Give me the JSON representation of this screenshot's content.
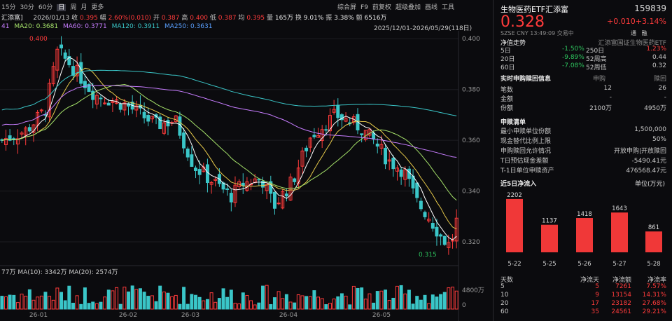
{
  "toolbar": {
    "periods": [
      "15分",
      "30分",
      "60分",
      "日",
      "周",
      "月",
      "更多"
    ],
    "selected": "日",
    "right_items": [
      "综合屏",
      "F9",
      "前复权",
      "超级叠加",
      "画线",
      "工具"
    ]
  },
  "quote_bar": {
    "name": "汇添富]",
    "date": "2026/01/13",
    "close_l": "收",
    "close": "0.395",
    "chg_l": "幅",
    "chg": "2.60%(0.010)",
    "open_l": "开",
    "open": "0.387",
    "high_l": "高",
    "high": "0.400",
    "low_l": "低",
    "low": "0.387",
    "avg_l": "均",
    "avg": "0.395",
    "vol_l": "量",
    "vol": "165万",
    "turn_l": "换",
    "turn": "9.01%",
    "amp_l": "振",
    "amp": "3.38%",
    "amt_l": "额",
    "amt": "6516万"
  },
  "ma_bar": {
    "ma10_tail": "41",
    "ma20": "MA20: 0.3681",
    "ma60": "MA60: 0.3771",
    "ma120": "MA120: 0.3911",
    "ma250": "MA250: 0.3631",
    "range": "2025/12/01-2026/05/29(118日)"
  },
  "chart_data": {
    "type": "candlestick",
    "ylim": [
      0.312,
      0.402
    ],
    "y_ticks": [
      "0.400",
      "0.380",
      "0.360",
      "0.340",
      "0.320"
    ],
    "x_ticks": [
      "26-01",
      "26-02",
      "26-03",
      "26-04",
      "26-05"
    ],
    "high_label": "0.400",
    "low_label": "0.315",
    "vol_ticks": [
      "4800万",
      "0"
    ],
    "vol_ma_text": "77万 MA(10): 3342万 MA(20): 2574万"
  },
  "security": {
    "name": "生物医药ETF汇添富",
    "code": "159839",
    "price": "0.328",
    "change": "+0.010",
    "change_pct": "+3.14%",
    "market": "SZSE",
    "currency": "CNY",
    "time": "13:49:09",
    "status": "交易中",
    "tab1": "通",
    "tab2": "融"
  },
  "nav": {
    "title": "净值走势",
    "fund_name": "汇添富国证生物医药ETF",
    "rows": [
      {
        "p": "5日",
        "v": "-1.50%",
        "p2": "250日",
        "v2": "1.23%"
      },
      {
        "p": "20日",
        "v": "-9.89%",
        "p2": "52周高",
        "v2": "0.44"
      },
      {
        "p": "60日",
        "v": "-7.08%",
        "p2": "52周低",
        "v2": "0.32"
      }
    ]
  },
  "redemption_info": {
    "title": "实时申购赎回信息",
    "col1": "申购",
    "col2": "赎回",
    "rows": [
      {
        "label": "笔数",
        "a": "12",
        "b": "26"
      },
      {
        "label": "金额",
        "a": "-",
        "b": "-"
      },
      {
        "label": "份额",
        "a": "2100万",
        "b": "4950万"
      }
    ]
  },
  "list": {
    "title": "申赎清单",
    "rows": [
      {
        "label": "最小申赎单位份额",
        "value": "1,500,000"
      },
      {
        "label": "现金替代比例上限",
        "value": "50%"
      },
      {
        "label": "申购赎回允许情况",
        "value": "开放申购|开放赎回"
      },
      {
        "label": "T日预估现金差额",
        "value": "-5490.41元"
      },
      {
        "label": "T-1日单位申赎资产",
        "value": "476568.47元"
      }
    ]
  },
  "inflow": {
    "title": "近5日净流入",
    "unit": "单位(万元)",
    "dates": [
      "5-22",
      "5-25",
      "5-26",
      "5-27",
      "5-28"
    ],
    "values": [
      2202,
      1137,
      1418,
      1643,
      861
    ]
  },
  "summary": {
    "headers": [
      "天数",
      "净流天",
      "净流额",
      "净流率"
    ],
    "rows": [
      [
        "5",
        "5",
        "7261",
        "7.57%"
      ],
      [
        "10",
        "9",
        "13154",
        "14.31%"
      ],
      [
        "20",
        "17",
        "23182",
        "27.68%"
      ],
      [
        "60",
        "35",
        "24561",
        "29.21%"
      ]
    ]
  },
  "colors": {
    "up": "#ff3b3b",
    "down": "#3ac6c8",
    "bg": "#0b0b0e"
  }
}
